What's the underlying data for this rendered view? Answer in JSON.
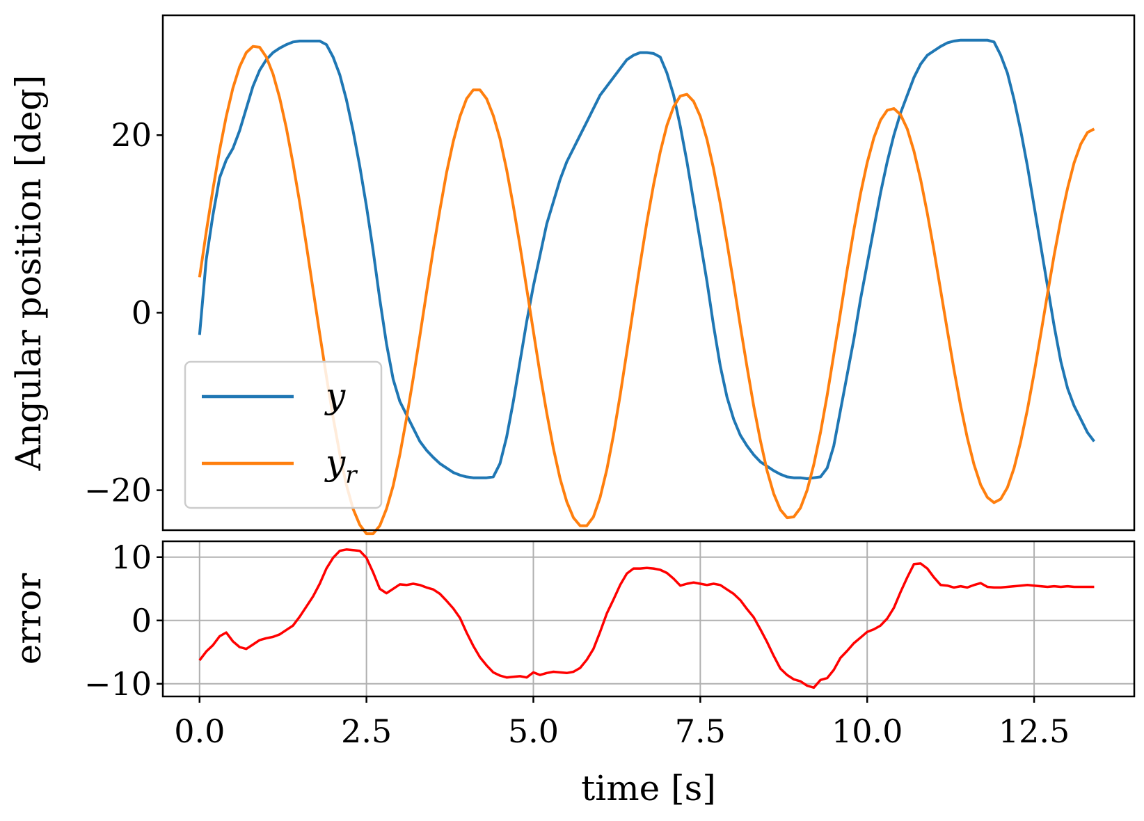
{
  "chart_data": [
    {
      "type": "line",
      "name": "angular-position",
      "ylabel": "Angular position [deg]",
      "xlim": [
        -0.55,
        14.0
      ],
      "ylim": [
        -24.5,
        33.5
      ],
      "yticks": [
        -20,
        0,
        20
      ],
      "ytick_labels": [
        "−20",
        "0",
        "20"
      ],
      "grid": false,
      "legend_position": "lower-left",
      "series": [
        {
          "name": "y",
          "legend_label": "y",
          "color": "#1f77b4",
          "x": [
            0.0,
            0.1,
            0.2,
            0.3,
            0.4,
            0.5,
            0.6,
            0.7,
            0.8,
            0.9,
            1.0,
            1.1,
            1.2,
            1.3,
            1.4,
            1.5,
            1.6,
            1.7,
            1.8,
            1.9,
            2.0,
            2.1,
            2.2,
            2.3,
            2.4,
            2.5,
            2.6,
            2.7,
            2.8,
            2.9,
            3.0,
            3.1,
            3.2,
            3.3,
            3.4,
            3.5,
            3.6,
            3.7,
            3.8,
            3.9,
            4.0,
            4.1,
            4.2,
            4.3,
            4.4,
            4.5,
            4.6,
            4.7,
            4.8,
            4.9,
            5.0,
            5.1,
            5.2,
            5.3,
            5.4,
            5.5,
            5.6,
            5.7,
            5.8,
            5.9,
            6.0,
            6.1,
            6.2,
            6.3,
            6.4,
            6.5,
            6.6,
            6.7,
            6.8,
            6.9,
            7.0,
            7.1,
            7.2,
            7.3,
            7.4,
            7.5,
            7.6,
            7.7,
            7.8,
            7.9,
            8.0,
            8.1,
            8.2,
            8.3,
            8.4,
            8.5,
            8.6,
            8.7,
            8.8,
            8.9,
            9.0,
            9.1,
            9.2,
            9.3,
            9.4,
            9.5,
            9.6,
            9.7,
            9.8,
            9.9,
            10.0,
            10.1,
            10.2,
            10.3,
            10.4,
            10.5,
            10.6,
            10.7,
            10.8,
            10.9,
            11.0,
            11.1,
            11.2,
            11.3,
            11.4,
            11.5,
            11.6,
            11.7,
            11.8,
            11.9,
            12.0,
            12.1,
            12.2,
            12.3,
            12.4,
            12.5,
            12.6,
            12.7,
            12.8,
            12.9,
            13.0,
            13.1,
            13.2,
            13.3,
            13.4
          ],
          "y": [
            -2.5,
            6.0,
            11.0,
            15.2,
            17.2,
            18.5,
            20.5,
            23.0,
            25.5,
            27.3,
            28.5,
            29.3,
            29.8,
            30.2,
            30.5,
            30.6,
            30.6,
            30.6,
            30.6,
            30.2,
            28.8,
            26.8,
            24.0,
            20.5,
            16.5,
            12.0,
            7.0,
            1.5,
            -3.5,
            -7.5,
            -10.0,
            -11.5,
            -13.0,
            -14.5,
            -15.5,
            -16.3,
            -17.0,
            -17.5,
            -18.0,
            -18.3,
            -18.5,
            -18.6,
            -18.6,
            -18.6,
            -18.5,
            -17.0,
            -14.0,
            -10.0,
            -5.5,
            -1.0,
            3.0,
            6.5,
            10.0,
            12.5,
            15.0,
            17.0,
            18.5,
            20.0,
            21.5,
            23.0,
            24.5,
            25.5,
            26.5,
            27.5,
            28.5,
            29.0,
            29.3,
            29.3,
            29.2,
            28.8,
            27.0,
            24.5,
            21.0,
            17.0,
            12.5,
            8.0,
            3.5,
            -1.5,
            -6.0,
            -9.5,
            -12.0,
            -13.8,
            -15.0,
            -16.0,
            -16.8,
            -17.3,
            -17.8,
            -18.2,
            -18.5,
            -18.6,
            -18.6,
            -18.7,
            -18.6,
            -18.5,
            -17.5,
            -15.0,
            -11.0,
            -7.0,
            -3.0,
            1.5,
            5.5,
            9.5,
            13.5,
            17.0,
            20.0,
            22.5,
            24.5,
            26.5,
            28.0,
            29.0,
            29.5,
            30.0,
            30.4,
            30.6,
            30.7,
            30.7,
            30.7,
            30.7,
            30.7,
            30.5,
            29.0,
            27.0,
            24.0,
            20.5,
            16.5,
            12.0,
            7.5,
            3.0,
            -1.5,
            -5.5,
            -8.5,
            -10.5,
            -12.0,
            -13.5,
            -14.5
          ]
        },
        {
          "name": "yr",
          "legend_label": "y",
          "legend_subscript": "r",
          "color": "#ff7f0e",
          "x": [
            0.0,
            0.1,
            0.2,
            0.3,
            0.4,
            0.5,
            0.6,
            0.7,
            0.8,
            0.9,
            1.0,
            1.1,
            1.2,
            1.3,
            1.4,
            1.5,
            1.6,
            1.7,
            1.8,
            1.9,
            2.0,
            2.1,
            2.2,
            2.3,
            2.4,
            2.5,
            2.6,
            2.7,
            2.8,
            2.9,
            3.0,
            3.1,
            3.2,
            3.3,
            3.4,
            3.5,
            3.6,
            3.7,
            3.8,
            3.9,
            4.0,
            4.1,
            4.2,
            4.3,
            4.4,
            4.5,
            4.6,
            4.7,
            4.8,
            4.9,
            5.0,
            5.1,
            5.2,
            5.3,
            5.4,
            5.5,
            5.6,
            5.7,
            5.8,
            5.9,
            6.0,
            6.1,
            6.2,
            6.3,
            6.4,
            6.5,
            6.6,
            6.7,
            6.8,
            6.9,
            7.0,
            7.1,
            7.2,
            7.3,
            7.4,
            7.5,
            7.6,
            7.7,
            7.8,
            7.9,
            8.0,
            8.1,
            8.2,
            8.3,
            8.4,
            8.5,
            8.6,
            8.7,
            8.8,
            8.9,
            9.0,
            9.1,
            9.2,
            9.3,
            9.4,
            9.5,
            9.6,
            9.7,
            9.8,
            9.9,
            10.0,
            10.1,
            10.2,
            10.3,
            10.4,
            10.5,
            10.6,
            10.7,
            10.8,
            10.9,
            11.0,
            11.1,
            11.2,
            11.3,
            11.4,
            11.5,
            11.6,
            11.7,
            11.8,
            11.9,
            12.0,
            12.1,
            12.2,
            12.3,
            12.4,
            12.5,
            12.6,
            12.7,
            12.8,
            12.9,
            13.0,
            13.1,
            13.2,
            13.3,
            13.4
          ],
          "y": [
            4.0,
            9.1,
            13.9,
            18.3,
            22.1,
            25.3,
            27.7,
            29.3,
            30.0,
            29.9,
            28.8,
            26.9,
            24.2,
            20.8,
            16.8,
            12.4,
            7.6,
            2.6,
            -2.4,
            -7.2,
            -11.8,
            -15.9,
            -19.4,
            -22.1,
            -23.9,
            -24.9,
            -24.9,
            -24.0,
            -22.1,
            -19.5,
            -16.0,
            -11.9,
            -7.4,
            -2.6,
            2.3,
            7.1,
            11.6,
            15.8,
            19.3,
            22.1,
            24.1,
            25.1,
            25.1,
            24.1,
            22.2,
            19.6,
            16.1,
            12.0,
            7.5,
            2.7,
            -2.1,
            -6.9,
            -11.3,
            -15.3,
            -18.7,
            -21.3,
            -23.1,
            -24.0,
            -24.0,
            -23.0,
            -20.8,
            -17.7,
            -13.8,
            -9.3,
            -4.4,
            0.6,
            5.5,
            10.2,
            14.4,
            18.1,
            21.1,
            23.2,
            24.4,
            24.6,
            23.8,
            22.1,
            19.5,
            16.2,
            12.3,
            7.9,
            3.3,
            -1.5,
            -6.1,
            -10.5,
            -14.4,
            -17.8,
            -20.4,
            -22.2,
            -23.1,
            -23.0,
            -22.0,
            -20.0,
            -17.1,
            -13.5,
            -9.3,
            -4.7,
            0.0,
            4.8,
            9.3,
            13.4,
            16.9,
            19.7,
            21.7,
            22.8,
            23.0,
            22.3,
            20.7,
            18.2,
            15.0,
            11.2,
            7.0,
            2.5,
            -2.0,
            -6.4,
            -10.5,
            -14.1,
            -17.1,
            -19.4,
            -20.8,
            -21.4,
            -21.0,
            -19.7,
            -17.5,
            -14.5,
            -10.9,
            -6.8,
            -2.4,
            2.1,
            6.5,
            10.5,
            14.0,
            16.9,
            19.0,
            20.3,
            20.7
          ]
        }
      ]
    },
    {
      "type": "line",
      "name": "error",
      "xlabel": "time [s]",
      "ylabel": "error",
      "xlim": [
        -0.55,
        14.0
      ],
      "ylim": [
        -12.0,
        12.5
      ],
      "xticks": [
        0.0,
        2.5,
        5.0,
        7.5,
        10.0,
        12.5
      ],
      "xtick_labels": [
        "0.0",
        "2.5",
        "5.0",
        "7.5",
        "10.0",
        "12.5"
      ],
      "yticks": [
        -10,
        0,
        10
      ],
      "ytick_labels": [
        "−10",
        "0",
        "10"
      ],
      "grid": true,
      "series": [
        {
          "name": "error",
          "color": "#ff0000",
          "x": [
            0.0,
            0.1,
            0.2,
            0.3,
            0.4,
            0.5,
            0.6,
            0.7,
            0.8,
            0.9,
            1.0,
            1.1,
            1.2,
            1.3,
            1.4,
            1.5,
            1.6,
            1.7,
            1.8,
            1.9,
            2.0,
            2.1,
            2.2,
            2.3,
            2.4,
            2.5,
            2.6,
            2.7,
            2.8,
            2.9,
            3.0,
            3.1,
            3.2,
            3.3,
            3.4,
            3.5,
            3.6,
            3.7,
            3.8,
            3.9,
            4.0,
            4.1,
            4.2,
            4.3,
            4.4,
            4.5,
            4.6,
            4.7,
            4.8,
            4.9,
            5.0,
            5.1,
            5.2,
            5.3,
            5.4,
            5.5,
            5.6,
            5.7,
            5.8,
            5.9,
            6.0,
            6.1,
            6.2,
            6.3,
            6.4,
            6.5,
            6.6,
            6.7,
            6.8,
            6.9,
            7.0,
            7.1,
            7.2,
            7.3,
            7.4,
            7.5,
            7.6,
            7.7,
            7.8,
            7.9,
            8.0,
            8.1,
            8.2,
            8.3,
            8.4,
            8.5,
            8.6,
            8.7,
            8.8,
            8.9,
            9.0,
            9.1,
            9.2,
            9.3,
            9.4,
            9.5,
            9.6,
            9.7,
            9.8,
            9.9,
            10.0,
            10.1,
            10.2,
            10.3,
            10.4,
            10.5,
            10.6,
            10.7,
            10.8,
            10.9,
            11.0,
            11.1,
            11.2,
            11.3,
            11.4,
            11.5,
            11.6,
            11.7,
            11.8,
            11.9,
            12.0,
            12.1,
            12.2,
            12.3,
            12.4,
            12.5,
            12.6,
            12.7,
            12.8,
            12.9,
            13.0,
            13.1,
            13.2,
            13.3,
            13.4
          ],
          "y": [
            -6.3,
            -4.9,
            -3.9,
            -2.5,
            -1.9,
            -3.3,
            -4.2,
            -4.5,
            -3.8,
            -3.1,
            -2.8,
            -2.6,
            -2.2,
            -1.5,
            -0.8,
            0.6,
            2.2,
            3.8,
            5.8,
            8.2,
            9.9,
            11.0,
            11.2,
            11.1,
            11.0,
            9.9,
            7.6,
            5.0,
            4.3,
            5.0,
            5.7,
            5.6,
            5.8,
            5.6,
            5.2,
            4.9,
            4.2,
            3.1,
            1.9,
            0.4,
            -1.9,
            -4.0,
            -5.8,
            -7.1,
            -8.2,
            -8.7,
            -9.0,
            -8.9,
            -8.8,
            -9.0,
            -8.2,
            -8.6,
            -8.3,
            -8.1,
            -8.2,
            -8.3,
            -8.1,
            -7.5,
            -6.2,
            -4.5,
            -1.8,
            1.1,
            3.3,
            5.6,
            7.4,
            8.2,
            8.2,
            8.3,
            8.2,
            8.0,
            7.5,
            6.6,
            5.5,
            5.8,
            6.0,
            5.8,
            5.6,
            5.8,
            5.6,
            4.9,
            4.2,
            3.2,
            1.8,
            0.5,
            -1.4,
            -3.4,
            -5.6,
            -7.6,
            -8.6,
            -9.3,
            -9.6,
            -10.3,
            -10.6,
            -9.4,
            -9.1,
            -7.8,
            -5.9,
            -4.8,
            -3.6,
            -2.7,
            -1.8,
            -1.4,
            -0.8,
            0.3,
            2.0,
            4.5,
            6.8,
            8.9,
            9.0,
            8.2,
            6.8,
            5.6,
            5.5,
            5.2,
            5.4,
            5.2,
            5.6,
            5.9,
            5.3,
            5.2,
            5.2,
            5.3,
            5.4,
            5.5,
            5.6,
            5.5,
            5.4,
            5.3,
            5.4,
            5.3,
            5.4,
            5.3,
            5.3,
            5.3,
            5.3
          ]
        }
      ]
    }
  ]
}
